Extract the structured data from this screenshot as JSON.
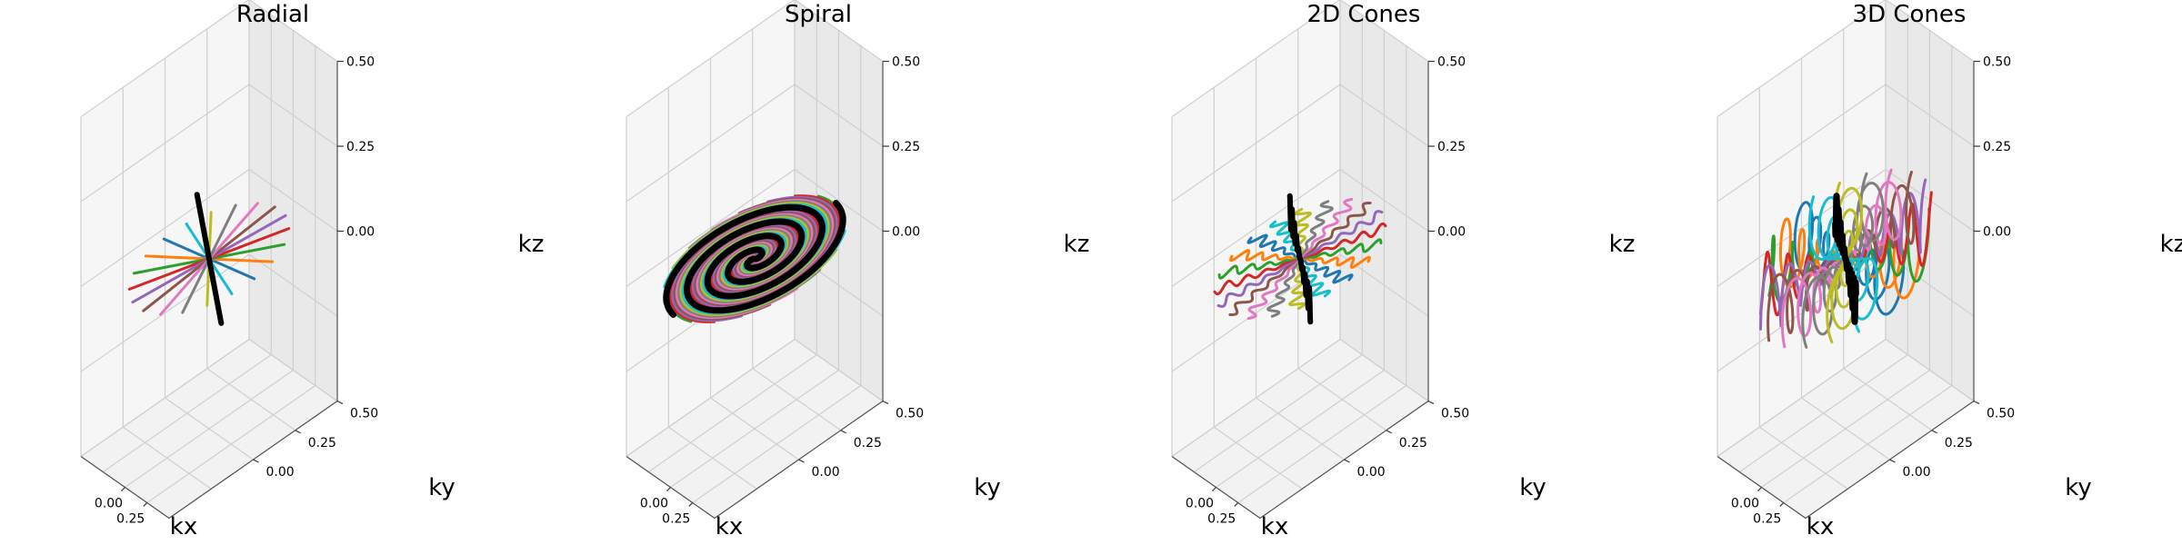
{
  "chart_data": [
    {
      "type": "line3d",
      "title": "Radial",
      "xlabel": "kx",
      "ylabel": "ky",
      "zlabel": "kz",
      "x_ticks": [
        "0.00",
        "0.25"
      ],
      "y_ticks": [
        "0.00",
        "0.25",
        "0.50"
      ],
      "z_ticks": [
        "0.00",
        "0.25",
        "0.50"
      ],
      "xlim": [
        -0.5,
        0.5
      ],
      "ylim": [
        -0.5,
        0.5
      ],
      "zlim": [
        -0.5,
        0.5
      ],
      "grid": true,
      "trajectory": "radial",
      "num_trajectories": 10,
      "highlight_color": "#000000"
    },
    {
      "type": "line3d",
      "title": "Spiral",
      "xlabel": "kx",
      "ylabel": "ky",
      "zlabel": "kz",
      "x_ticks": [
        "0.00",
        "0.25"
      ],
      "y_ticks": [
        "0.00",
        "0.25",
        "0.50"
      ],
      "z_ticks": [
        "0.00",
        "0.25",
        "0.50"
      ],
      "xlim": [
        -0.5,
        0.5
      ],
      "ylim": [
        -0.5,
        0.5
      ],
      "zlim": [
        -0.5,
        0.5
      ],
      "grid": true,
      "trajectory": "spiral",
      "num_trajectories": 10,
      "highlight_color": "#000000"
    },
    {
      "type": "line3d",
      "title": "2D Cones",
      "xlabel": "kx",
      "ylabel": "ky",
      "zlabel": "kz",
      "x_ticks": [
        "0.00",
        "0.25"
      ],
      "y_ticks": [
        "0.00",
        "0.25",
        "0.50"
      ],
      "z_ticks": [
        "0.00",
        "0.25",
        "0.50"
      ],
      "xlim": [
        -0.5,
        0.5
      ],
      "ylim": [
        -0.5,
        0.5
      ],
      "zlim": [
        -0.5,
        0.5
      ],
      "grid": true,
      "trajectory": "cones2d",
      "num_trajectories": 10,
      "highlight_color": "#000000"
    },
    {
      "type": "line3d",
      "title": "3D Cones",
      "xlabel": "kx",
      "ylabel": "ky",
      "zlabel": "kz",
      "x_ticks": [
        "0.00",
        "0.25"
      ],
      "y_ticks": [
        "0.00",
        "0.25",
        "0.50"
      ],
      "z_ticks": [
        "0.00",
        "0.25",
        "0.50"
      ],
      "xlim": [
        -0.5,
        0.5
      ],
      "ylim": [
        -0.5,
        0.5
      ],
      "zlim": [
        -0.5,
        0.5
      ],
      "grid": true,
      "trajectory": "cones3d",
      "num_trajectories": 10,
      "highlight_color": "#000000"
    }
  ],
  "colors": [
    "#1f77b4",
    "#ff7f0e",
    "#2ca02c",
    "#d62728",
    "#9467bd",
    "#8c564b",
    "#e377c2",
    "#7f7f7f",
    "#bcbd22",
    "#17becf"
  ]
}
